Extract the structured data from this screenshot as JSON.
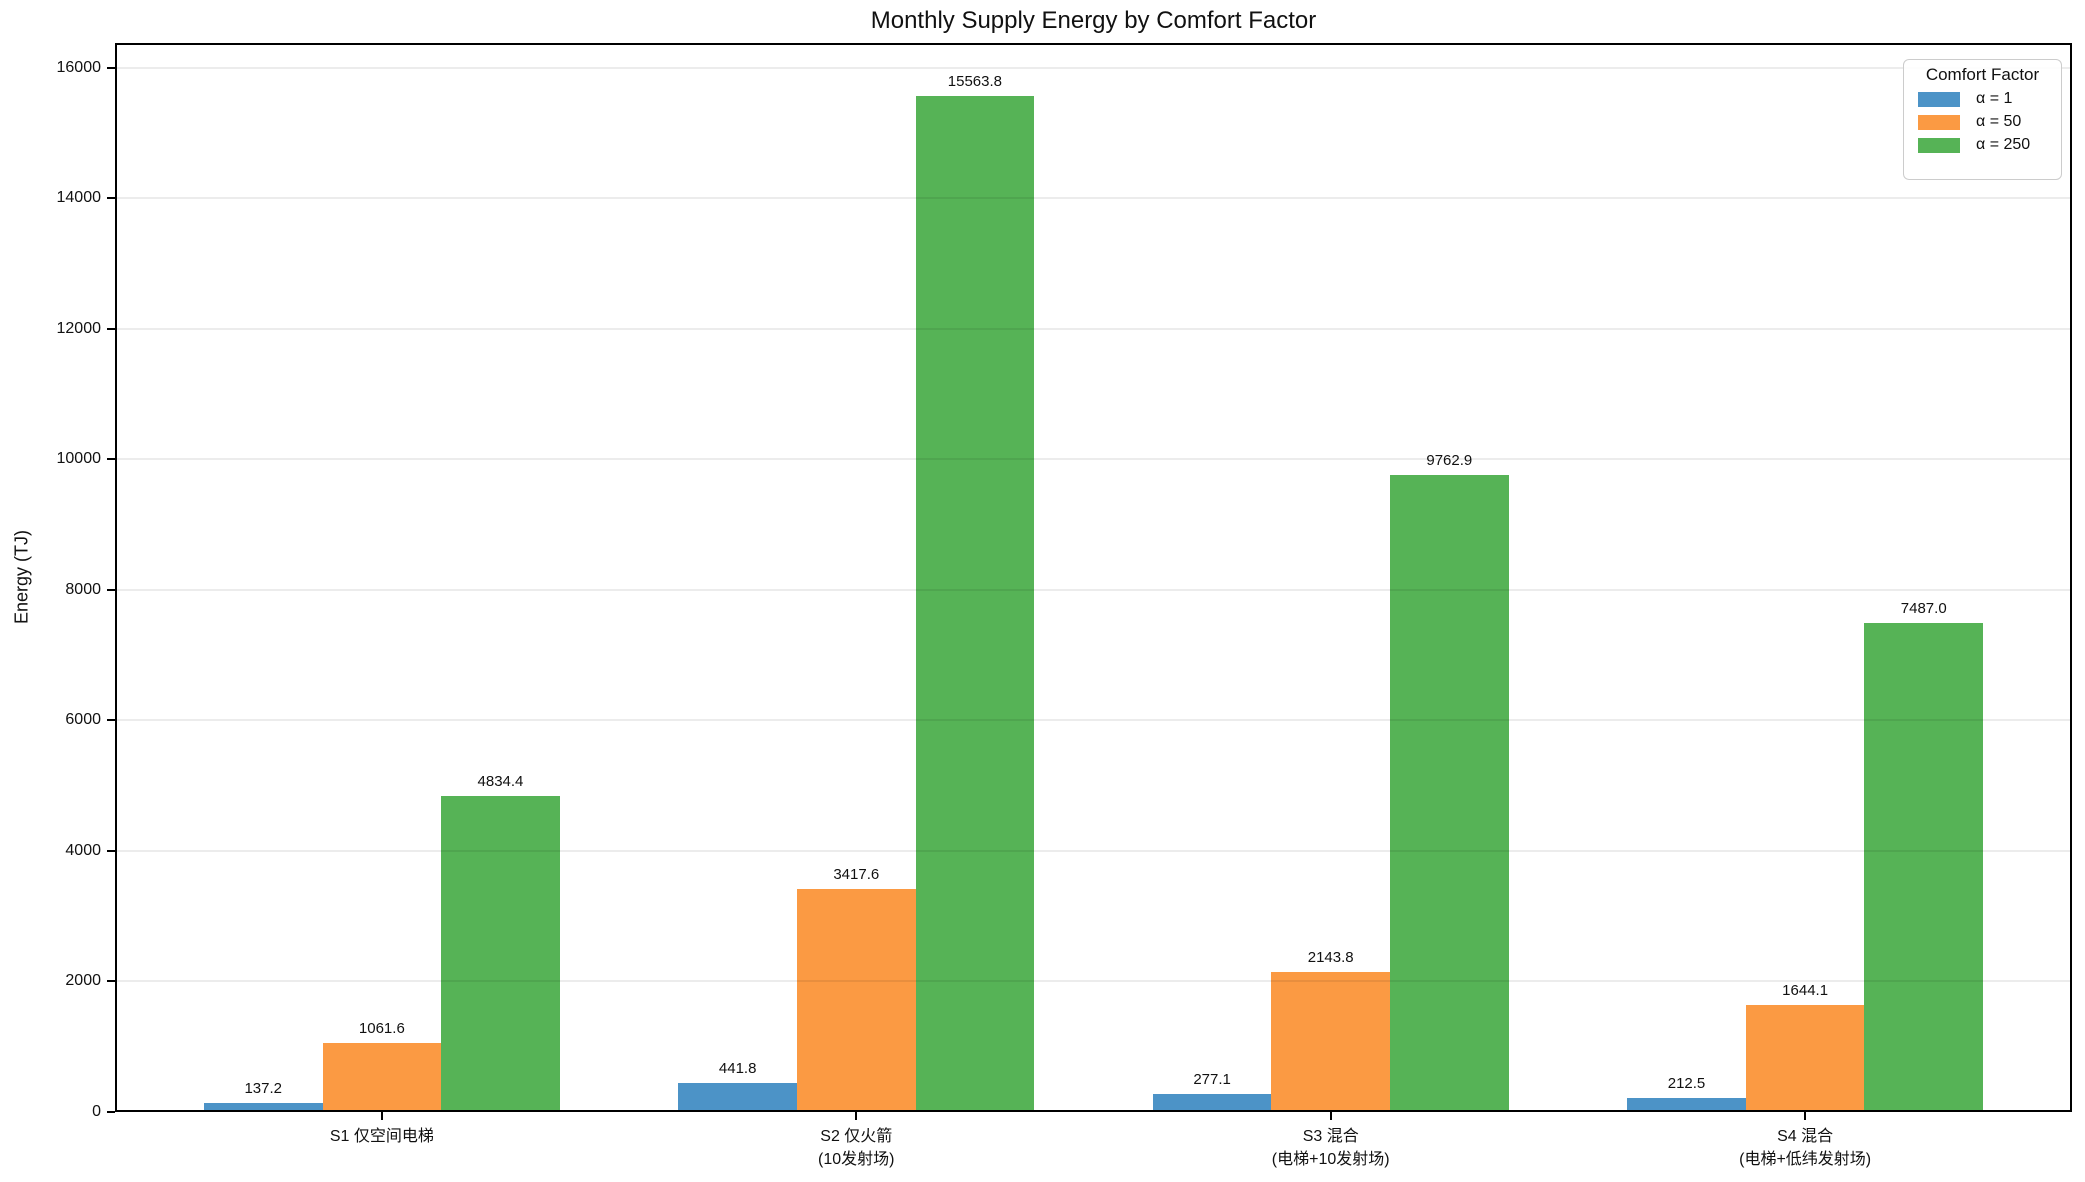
{
  "chart_data": {
    "type": "bar",
    "title": "Monthly Supply Energy by Comfort Factor",
    "xlabel": "",
    "ylabel": "Energy (TJ)",
    "categories": [
      "S1 仅空间电梯",
      "S2 仅火箭 (10发射场)",
      "S3 混合 (电梯+10发射场)",
      "S4 混合 (电梯+低纬发射场)"
    ],
    "category_lines": [
      [
        "S1 仅空间电梯"
      ],
      [
        "S2 仅火箭",
        "(10发射场)"
      ],
      [
        "S3 混合",
        "(电梯+10发射场)"
      ],
      [
        "S4 混合",
        "(电梯+低纬发射场)"
      ]
    ],
    "series": [
      {
        "name": "α = 1",
        "color": "#4C93C7",
        "values": [
          137.2,
          441.8,
          277.1,
          212.5
        ]
      },
      {
        "name": "α = 50",
        "color": "#FB9A43",
        "values": [
          1061.6,
          3417.6,
          2143.8,
          1644.1
        ]
      },
      {
        "name": "α = 250",
        "color": "#56B356",
        "values": [
          4834.4,
          15563.8,
          9762.9,
          7487.0
        ]
      }
    ],
    "value_labels": [
      [
        "137.2",
        "441.8",
        "277.1",
        "212.5"
      ],
      [
        "1061.6",
        "3417.6",
        "2143.8",
        "1644.1"
      ],
      [
        "4834.4",
        "15563.8",
        "9762.9",
        "7487.0"
      ]
    ],
    "yticks": [
      0,
      2000,
      4000,
      6000,
      8000,
      10000,
      12000,
      14000,
      16000
    ],
    "ylim": [
      0,
      16380
    ],
    "grid": "horizontal-light-gray",
    "legend": {
      "title": "Comfort Factor",
      "position": "upper right"
    },
    "colors": {
      "alpha1_blue": "#4C93C7",
      "alpha50_orange": "#FB9A43",
      "alpha250_green": "#56B356",
      "spine": "#000000",
      "background": "#ffffff"
    }
  }
}
